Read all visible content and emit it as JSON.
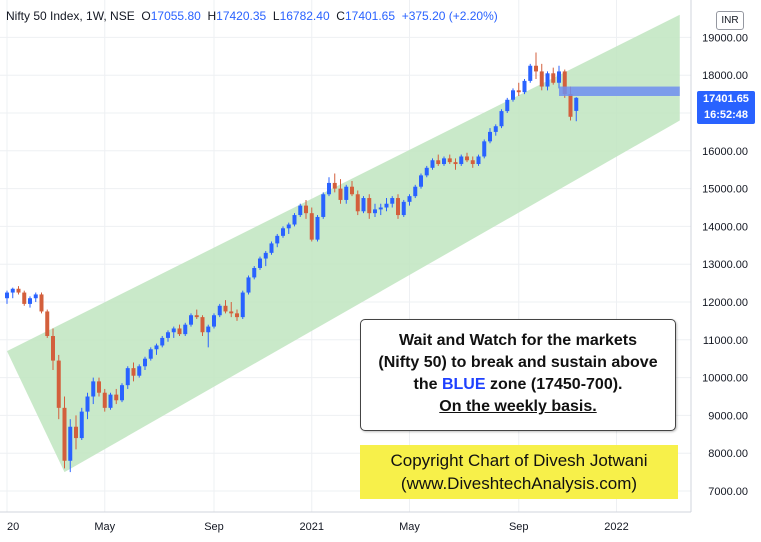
{
  "legend": {
    "symbol": "Nifty 50 Index, 1W, NSE",
    "open_label": "O",
    "open": "17055.80",
    "high_label": "H",
    "high": "17420.35",
    "low_label": "L",
    "low": "16782.40",
    "close_label": "C",
    "close": "17401.65",
    "change": "+375.20 (+2.20%)"
  },
  "currency": "INR",
  "price_tag": {
    "price": "17401.65",
    "time": "16:52:48"
  },
  "note": {
    "line1": "Wait and Watch for the markets",
    "line2": "(Nifty 50) to break and sustain above",
    "line3_a": "the ",
    "line3_blue": "BLUE",
    "line3_b": " zone (17450-700).",
    "line4": "On the weekly basis."
  },
  "copyright": {
    "line1": "Copyright Chart of Divesh Jotwani",
    "line2": "(www.DiveshtechAnalysis.com)"
  },
  "colors": {
    "up": "#2962ff",
    "down": "#d35f3c",
    "channel": "#bfe5bf",
    "zone": "#6f8ef0"
  },
  "chart_data": {
    "type": "candlestick",
    "ylim": [
      6500,
      19700
    ],
    "y_ticks": [
      "7000.00",
      "8000.00",
      "9000.00",
      "10000.00",
      "11000.00",
      "12000.00",
      "13000.00",
      "14000.00",
      "15000.00",
      "16000.00",
      "17000.00",
      "18000.00",
      "19000.00"
    ],
    "x_ticks": [
      {
        "label": "20",
        "i": 0
      },
      {
        "label": "May",
        "i": 17
      },
      {
        "label": "Sep",
        "i": 36
      },
      {
        "label": "2021",
        "i": 53
      },
      {
        "label": "May",
        "i": 70
      },
      {
        "label": "Sep",
        "i": 89
      },
      {
        "label": "2022",
        "i": 106
      }
    ],
    "x_range": [
      0,
      118
    ],
    "grid": true,
    "candles": [
      [
        12100,
        12300,
        11950,
        12250
      ],
      [
        12250,
        12380,
        12100,
        12350
      ],
      [
        12350,
        12420,
        12200,
        12250
      ],
      [
        12250,
        12300,
        11900,
        11950
      ],
      [
        11950,
        12150,
        11850,
        12100
      ],
      [
        12100,
        12250,
        12000,
        12200
      ],
      [
        12200,
        12250,
        11700,
        11750
      ],
      [
        11750,
        11800,
        11050,
        11100
      ],
      [
        11100,
        11300,
        10200,
        10450
      ],
      [
        10450,
        10600,
        8900,
        9200
      ],
      [
        9200,
        9500,
        7600,
        7800
      ],
      [
        7800,
        8900,
        7500,
        8700
      ],
      [
        8700,
        9000,
        8100,
        8400
      ],
      [
        8400,
        9200,
        8350,
        9100
      ],
      [
        9100,
        9600,
        8900,
        9500
      ],
      [
        9500,
        10000,
        9300,
        9900
      ],
      [
        9900,
        10000,
        9500,
        9600
      ],
      [
        9600,
        9700,
        9100,
        9200
      ],
      [
        9200,
        9600,
        9150,
        9550
      ],
      [
        9550,
        9700,
        9300,
        9400
      ],
      [
        9400,
        9850,
        9350,
        9800
      ],
      [
        9800,
        10300,
        9700,
        10250
      ],
      [
        10250,
        10400,
        9900,
        10050
      ],
      [
        10050,
        10350,
        10000,
        10300
      ],
      [
        10300,
        10550,
        10200,
        10500
      ],
      [
        10500,
        10800,
        10450,
        10750
      ],
      [
        10750,
        10900,
        10600,
        10850
      ],
      [
        10850,
        11100,
        10800,
        11050
      ],
      [
        11050,
        11250,
        10950,
        11200
      ],
      [
        11200,
        11350,
        11050,
        11300
      ],
      [
        11300,
        11400,
        11100,
        11150
      ],
      [
        11150,
        11450,
        11100,
        11400
      ],
      [
        11400,
        11700,
        11350,
        11650
      ],
      [
        11650,
        11800,
        11550,
        11600
      ],
      [
        11600,
        11650,
        11100,
        11200
      ],
      [
        11200,
        11400,
        10800,
        11350
      ],
      [
        11350,
        11700,
        11300,
        11650
      ],
      [
        11650,
        11950,
        11600,
        11900
      ],
      [
        11900,
        12050,
        11700,
        11750
      ],
      [
        11750,
        12000,
        11600,
        11700
      ],
      [
        11700,
        11800,
        11500,
        11600
      ],
      [
        11600,
        12300,
        11550,
        12250
      ],
      [
        12250,
        12700,
        12200,
        12650
      ],
      [
        12650,
        12950,
        12600,
        12900
      ],
      [
        12900,
        13200,
        12850,
        13150
      ],
      [
        13150,
        13350,
        12950,
        13300
      ],
      [
        13300,
        13600,
        13250,
        13550
      ],
      [
        13550,
        13800,
        13450,
        13750
      ],
      [
        13750,
        14000,
        13700,
        13950
      ],
      [
        13950,
        14100,
        13800,
        14050
      ],
      [
        14050,
        14350,
        14000,
        14300
      ],
      [
        14300,
        14600,
        14250,
        14550
      ],
      [
        14550,
        14700,
        14200,
        14350
      ],
      [
        14350,
        14500,
        13600,
        13650
      ],
      [
        13650,
        14300,
        13600,
        14250
      ],
      [
        14250,
        14900,
        14200,
        14850
      ],
      [
        14850,
        15300,
        14800,
        15150
      ],
      [
        15150,
        15400,
        14900,
        15000
      ],
      [
        15000,
        15250,
        14600,
        14700
      ],
      [
        14700,
        15100,
        14600,
        15050
      ],
      [
        15050,
        15200,
        14800,
        14850
      ],
      [
        14850,
        14950,
        14300,
        14400
      ],
      [
        14400,
        14800,
        14350,
        14750
      ],
      [
        14750,
        14850,
        14200,
        14350
      ],
      [
        14350,
        14600,
        14250,
        14450
      ],
      [
        14450,
        14600,
        14300,
        14500
      ],
      [
        14500,
        14750,
        14400,
        14600
      ],
      [
        14600,
        14800,
        14500,
        14750
      ],
      [
        14750,
        14850,
        14200,
        14300
      ],
      [
        14300,
        14700,
        14250,
        14650
      ],
      [
        14650,
        14850,
        14550,
        14800
      ],
      [
        14800,
        15100,
        14750,
        15050
      ],
      [
        15050,
        15400,
        15000,
        15350
      ],
      [
        15350,
        15600,
        15300,
        15550
      ],
      [
        15550,
        15800,
        15500,
        15750
      ],
      [
        15750,
        15900,
        15600,
        15650
      ],
      [
        15650,
        15850,
        15600,
        15800
      ],
      [
        15800,
        15900,
        15650,
        15700
      ],
      [
        15700,
        15800,
        15500,
        15650
      ],
      [
        15650,
        15900,
        15600,
        15850
      ],
      [
        15850,
        15950,
        15700,
        15750
      ],
      [
        15750,
        15850,
        15550,
        15650
      ],
      [
        15650,
        15900,
        15600,
        15850
      ],
      [
        15850,
        16300,
        15800,
        16250
      ],
      [
        16250,
        16600,
        16200,
        16500
      ],
      [
        16500,
        16700,
        16400,
        16650
      ],
      [
        16650,
        17100,
        16600,
        17050
      ],
      [
        17050,
        17400,
        17000,
        17350
      ],
      [
        17350,
        17650,
        17300,
        17600
      ],
      [
        17600,
        17800,
        17450,
        17550
      ],
      [
        17550,
        17900,
        17500,
        17850
      ],
      [
        17850,
        18300,
        17800,
        18250
      ],
      [
        18250,
        18600,
        17900,
        18100
      ],
      [
        18100,
        18300,
        17600,
        17700
      ],
      [
        17700,
        18100,
        17600,
        18050
      ],
      [
        18050,
        18200,
        17750,
        17800
      ],
      [
        17800,
        18250,
        17650,
        18100
      ],
      [
        18100,
        18150,
        17400,
        17500
      ],
      [
        17500,
        17700,
        16800,
        16900
      ],
      [
        17055.8,
        17420.35,
        16782.4,
        17401.65
      ]
    ],
    "channel": {
      "lower": [
        [
          10,
          7500
        ],
        [
          117,
          16800
        ]
      ],
      "upper": [
        [
          0,
          10700
        ],
        [
          117,
          19600
        ]
      ]
    },
    "zone": {
      "i_start": 96,
      "i_end": 117,
      "low": 17450,
      "high": 17700
    }
  }
}
